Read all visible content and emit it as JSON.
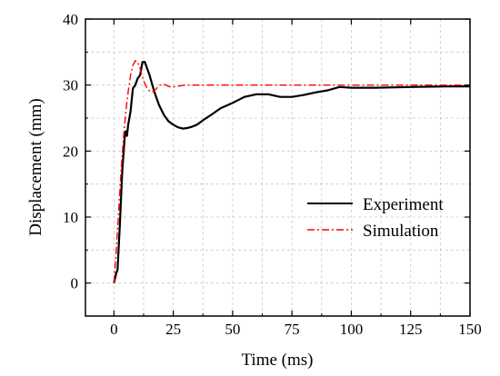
{
  "chart_data": {
    "type": "line",
    "title": "",
    "xlabel": "Time (ms)",
    "ylabel": "Displacement (mm)",
    "xlim": [
      -12,
      150
    ],
    "ylim": [
      -5,
      40
    ],
    "xticks": [
      0,
      25,
      50,
      75,
      100,
      125,
      150
    ],
    "yticks": [
      0,
      10,
      20,
      30,
      40
    ],
    "xtick_labels": [
      "0",
      "25",
      "50",
      "75",
      "100",
      "125",
      "150"
    ],
    "ytick_labels": [
      "0",
      "10",
      "20",
      "30",
      "40"
    ],
    "grid": true,
    "legend_position": "right",
    "series": [
      {
        "name": "Experiment",
        "color": "#000000",
        "style": "solid",
        "x": [
          0,
          1,
          1.5,
          2.5,
          3.5,
          4.5,
          5,
          5.5,
          6,
          7,
          8,
          9,
          10,
          11,
          12,
          13,
          14,
          15,
          17,
          19,
          21,
          23,
          25,
          27,
          29,
          31,
          33,
          35,
          38,
          41,
          45,
          50,
          55,
          60,
          65,
          70,
          75,
          80,
          85,
          90,
          95,
          100,
          110,
          125,
          140,
          150
        ],
        "y": [
          0,
          1.5,
          2,
          9,
          17,
          22,
          23,
          22.3,
          24,
          26,
          29.5,
          30,
          31,
          31.5,
          33.5,
          33.5,
          32.5,
          31.5,
          29,
          27,
          25.5,
          24.5,
          24,
          23.6,
          23.4,
          23.5,
          23.7,
          24,
          24.8,
          25.5,
          26.5,
          27.3,
          28.2,
          28.6,
          28.6,
          28.2,
          28.2,
          28.5,
          28.9,
          29.2,
          29.7,
          29.6,
          29.6,
          29.7,
          29.8,
          29.8
        ]
      },
      {
        "name": "Simulation",
        "color": "#ff0000",
        "style": "dashdot",
        "x": [
          0,
          1,
          2,
          3,
          4,
          5,
          6,
          7,
          8,
          9,
          10,
          11,
          12,
          13,
          14,
          15,
          16,
          17,
          18,
          19,
          20,
          21,
          22,
          23,
          24,
          25,
          26,
          28,
          30,
          35,
          40,
          50,
          75,
          100,
          125,
          150
        ],
        "y": [
          0,
          5,
          11,
          17,
          22,
          26,
          29,
          31.5,
          33,
          33.7,
          33.5,
          32.5,
          31.2,
          30.2,
          29.5,
          29.1,
          28.9,
          29.1,
          29.5,
          29.9,
          30.1,
          30.1,
          30,
          29.8,
          29.7,
          29.7,
          29.8,
          29.9,
          30,
          30,
          30,
          30,
          30,
          30,
          30,
          30
        ]
      }
    ]
  }
}
